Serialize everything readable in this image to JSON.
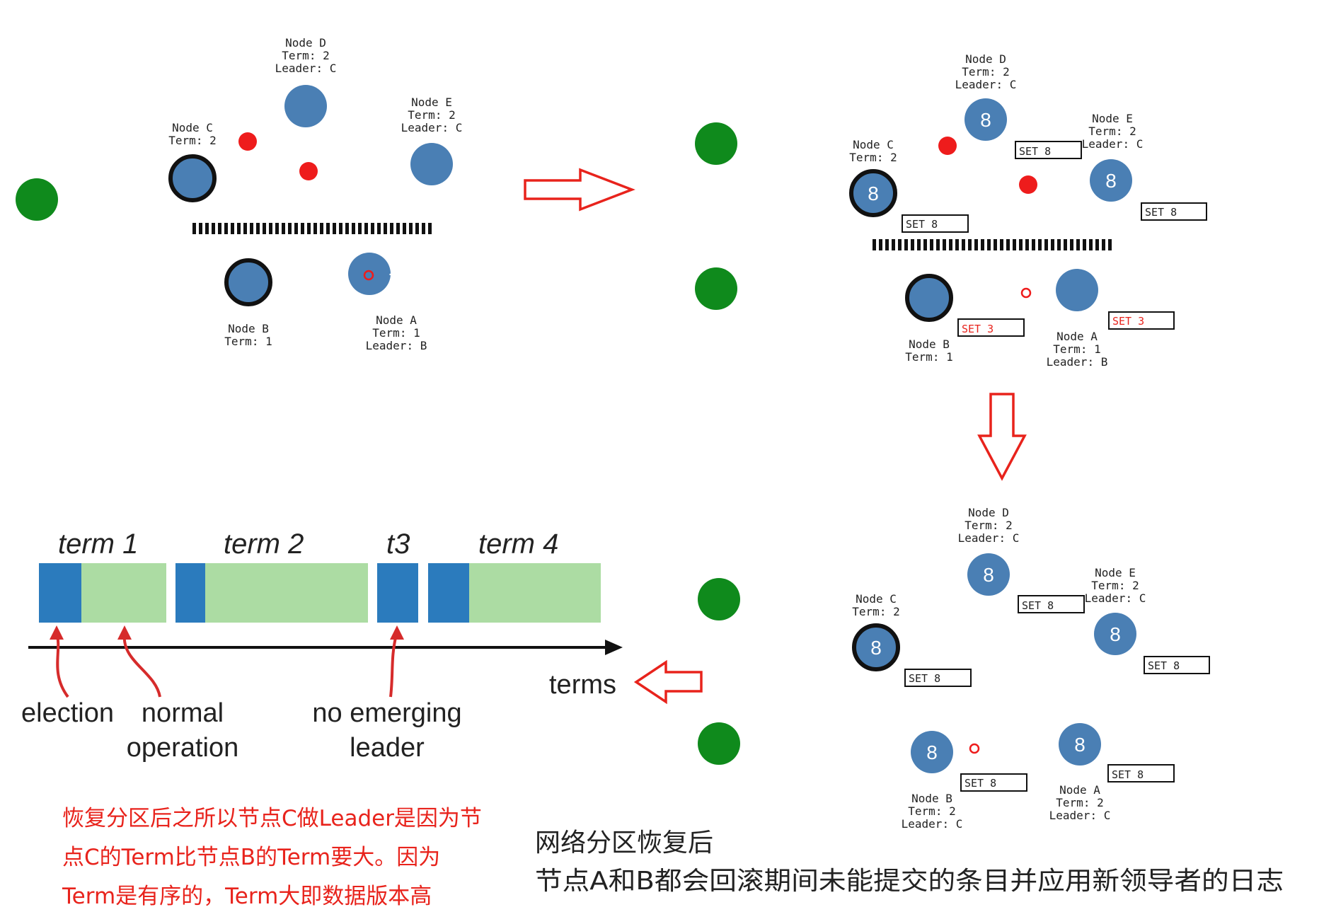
{
  "colors": {
    "node_blue": "#4a7fb4",
    "client_green": "#0f8a1c",
    "message_red": "#ee1c1c",
    "arrow_red": "#e8231c",
    "term_election": "#2b7bbd",
    "term_normal": "#acdca3"
  },
  "panel1": {
    "nodes": {
      "A": {
        "line1": "Node A",
        "line2": "Term: 1",
        "line3": "Leader: B"
      },
      "B": {
        "line1": "Node B",
        "line2": "Term: 1"
      },
      "C": {
        "line1": "Node C",
        "line2": "Term: 2"
      },
      "D": {
        "line1": "Node D",
        "line2": "Term: 2",
        "line3": "Leader: C"
      },
      "E": {
        "line1": "Node E",
        "line2": "Term: 2",
        "line3": "Leader: C"
      }
    }
  },
  "panel2": {
    "nodes": {
      "A": {
        "line1": "Node A",
        "line2": "Term: 1",
        "line3": "Leader: B",
        "value": ""
      },
      "B": {
        "line1": "Node B",
        "line2": "Term: 1",
        "value": ""
      },
      "C": {
        "line1": "Node C",
        "line2": "Term: 2",
        "value": "8"
      },
      "D": {
        "line1": "Node D",
        "line2": "Term: 2",
        "line3": "Leader: C",
        "value": "8"
      },
      "E": {
        "line1": "Node E",
        "line2": "Term: 2",
        "line3": "Leader: C",
        "value": "8"
      }
    },
    "sets": {
      "C": "SET 8",
      "D": "SET 8",
      "E": "SET 8",
      "B": "SET 3",
      "A": "SET 3"
    }
  },
  "panel3": {
    "nodes": {
      "A": {
        "line1": "Node A",
        "line2": "Term: 2",
        "line3": "Leader: C",
        "value": "8"
      },
      "B": {
        "line1": "Node B",
        "line2": "Term: 2",
        "line3": "Leader: C",
        "value": "8"
      },
      "C": {
        "line1": "Node C",
        "line2": "Term: 2",
        "value": "8"
      },
      "D": {
        "line1": "Node D",
        "line2": "Term: 2",
        "line3": "Leader: C",
        "value": "8"
      },
      "E": {
        "line1": "Node E",
        "line2": "Term: 2",
        "line3": "Leader: C",
        "value": "8"
      }
    },
    "sets": {
      "C": "SET 8",
      "D": "SET 8",
      "E": "SET 8",
      "B": "SET 8",
      "A": "SET 8"
    }
  },
  "terms_chart": {
    "terms": [
      "term 1",
      "term 2",
      "t3",
      "term 4"
    ],
    "axis_label": "terms",
    "annotations": {
      "election": "election",
      "normal_line1": "normal",
      "normal_line2": "operation",
      "no_leader_line1": "no emerging",
      "no_leader_line2": "leader"
    }
  },
  "notes": {
    "red_line1": "恢复分区后之所以节点C做Leader是因为节",
    "red_line2": "点C的Term比节点B的Term要大。因为",
    "red_line3": "Term是有序的，Term大即数据版本高",
    "black_line1": "网络分区恢复后",
    "black_line2": "节点A和B都会回滚期间未能提交的条目并应用新领导者的日志"
  }
}
